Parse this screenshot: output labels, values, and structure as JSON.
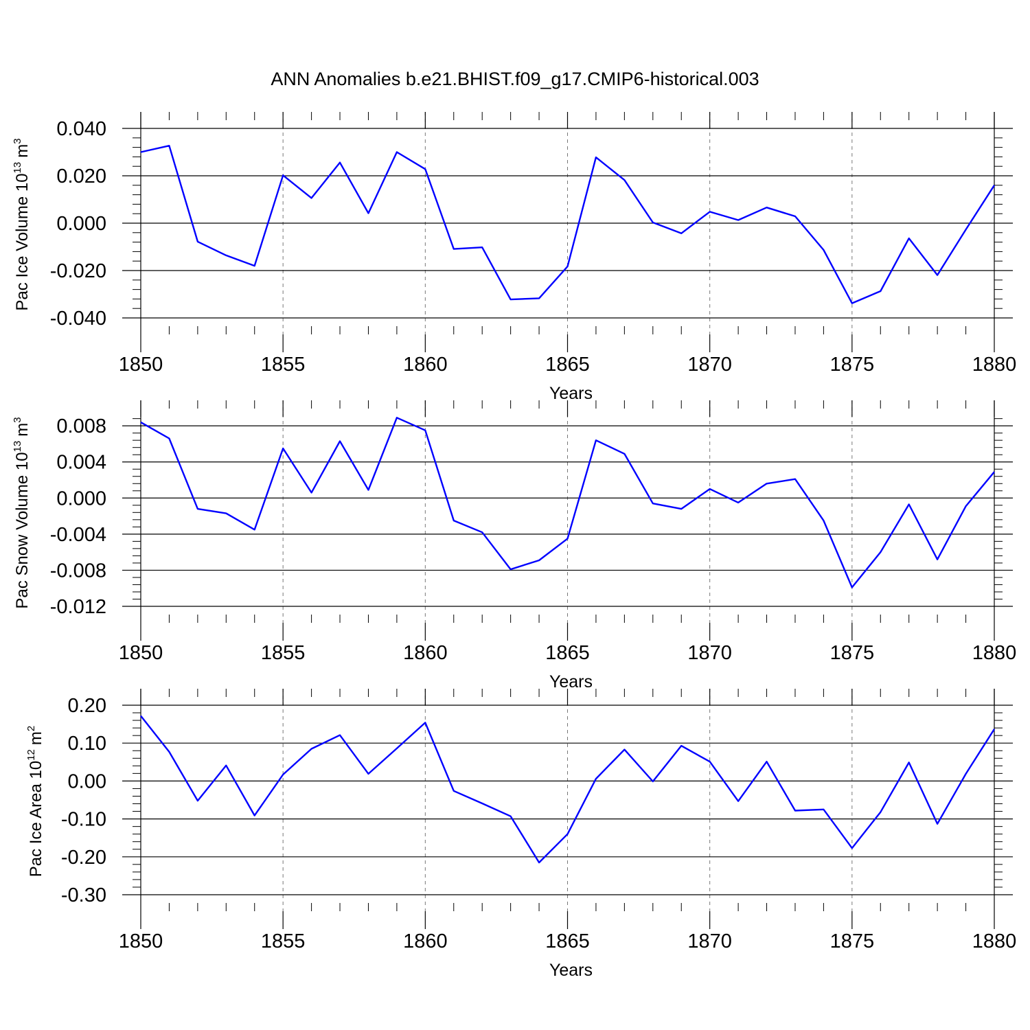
{
  "chart_data": {
    "type": "line",
    "title": "ANN Anomalies b.e21.BHIST.f09_g17.CMIP6-historical.003",
    "line_color": "#0000ff",
    "x": [
      1850,
      1851,
      1852,
      1853,
      1854,
      1855,
      1856,
      1857,
      1858,
      1859,
      1860,
      1861,
      1862,
      1863,
      1864,
      1865,
      1866,
      1867,
      1868,
      1869,
      1870,
      1871,
      1872,
      1873,
      1874,
      1875,
      1876,
      1877,
      1878,
      1879,
      1880
    ],
    "xlim": [
      1850,
      1880
    ],
    "xticks": [
      1850,
      1855,
      1860,
      1865,
      1870,
      1875,
      1880
    ],
    "xtick_labels": [
      "1850",
      "1855",
      "1860",
      "1865",
      "1870",
      "1875",
      "1880"
    ],
    "panels": [
      {
        "ylabel_main": "Pac Ice Volume 10",
        "ylabel_exp": "13",
        "ylabel_unit": "m",
        "ylabel_unit_exp": "3",
        "xlabel": "Years",
        "ylim": [
          -0.04,
          0.04
        ],
        "yticks": [
          0.04,
          0.02,
          0.0,
          -0.02,
          -0.04
        ],
        "ytick_labels": [
          "0.040",
          "0.020",
          "0.000",
          "-0.020",
          "-0.040"
        ],
        "values": [
          0.03,
          0.0327,
          -0.0078,
          -0.0136,
          -0.018,
          0.0202,
          0.0106,
          0.0256,
          0.0042,
          0.03,
          0.0228,
          -0.0109,
          -0.0102,
          -0.0322,
          -0.0317,
          -0.0183,
          0.0278,
          0.0182,
          0.0003,
          -0.0043,
          0.0048,
          0.0013,
          0.0066,
          0.0029,
          -0.0113,
          -0.0338,
          -0.0287,
          -0.0064,
          -0.0219,
          -0.0027,
          0.016
        ]
      },
      {
        "ylabel_main": "Pac Snow Volume 10",
        "ylabel_exp": "13",
        "ylabel_unit": "m",
        "ylabel_unit_exp": "3",
        "xlabel": "Years",
        "ylim": [
          -0.012,
          0.009
        ],
        "yticks": [
          0.008,
          0.004,
          0.0,
          -0.004,
          -0.008,
          -0.012
        ],
        "ytick_labels": [
          "0.008",
          "0.004",
          "0.000",
          "-0.004",
          "-0.008",
          "-0.012"
        ],
        "values": [
          0.0084,
          0.0066,
          -0.0012,
          -0.0017,
          -0.0035,
          0.0055,
          0.0006,
          0.0063,
          0.0009,
          0.0089,
          0.0075,
          -0.0025,
          -0.0038,
          -0.0079,
          -0.0069,
          -0.0045,
          0.0064,
          0.0049,
          -0.0006,
          -0.0012,
          0.001,
          -0.0005,
          0.0016,
          0.0021,
          -0.0025,
          -0.0099,
          -0.006,
          -0.0007,
          -0.0068,
          -0.0009,
          0.0029
        ]
      },
      {
        "ylabel_main": "Pac Ice Area 10",
        "ylabel_exp": "12",
        "ylabel_unit": "m",
        "ylabel_unit_exp": "2",
        "xlabel": "Years",
        "ylim": [
          -0.3,
          0.2
        ],
        "yticks": [
          0.2,
          0.1,
          0.0,
          -0.1,
          -0.2,
          -0.3
        ],
        "ytick_labels": [
          "0.20",
          "0.10",
          "0.00",
          "-0.10",
          "-0.20",
          "-0.30"
        ],
        "values": [
          0.172,
          0.077,
          -0.052,
          0.041,
          -0.091,
          0.017,
          0.085,
          0.121,
          0.019,
          0.086,
          0.154,
          -0.026,
          -0.059,
          -0.093,
          -0.215,
          -0.14,
          0.006,
          0.083,
          -0.001,
          0.093,
          0.051,
          -0.053,
          0.051,
          -0.078,
          -0.075,
          -0.177,
          -0.082,
          0.049,
          -0.113,
          0.019,
          0.137
        ]
      }
    ]
  }
}
